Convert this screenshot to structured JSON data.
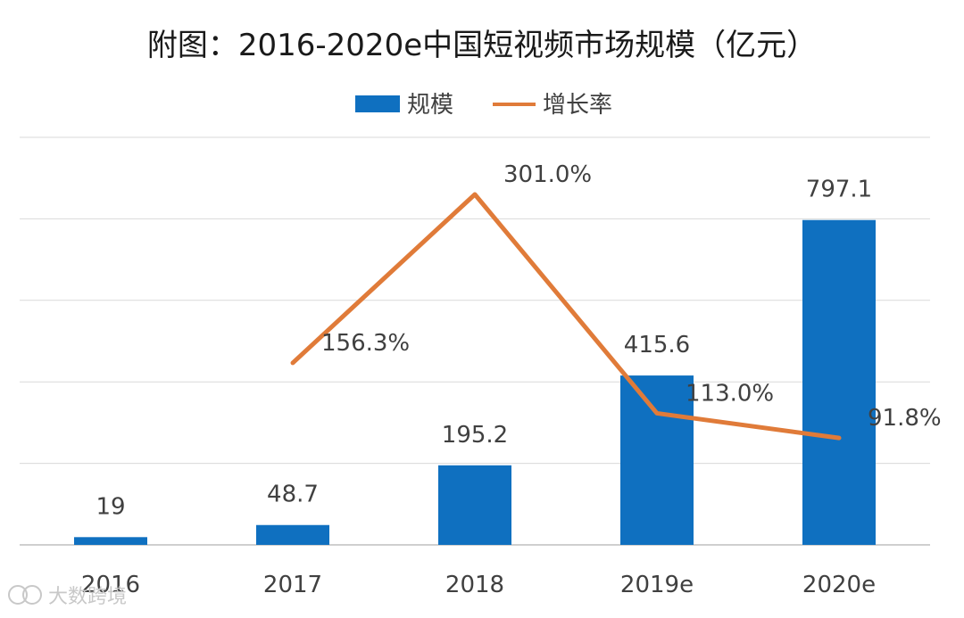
{
  "chart_data": {
    "type": "bar",
    "title": "附图：2016-2020e中国短视频市场规模（亿元）",
    "categories": [
      "2016",
      "2017",
      "2018",
      "2019e",
      "2020e"
    ],
    "series": [
      {
        "name": "规模",
        "kind": "bar",
        "values": [
          19,
          48.7,
          195.2,
          415.6,
          797.1
        ],
        "labels": [
          "19",
          "48.7",
          "195.2",
          "415.6",
          "797.1"
        ]
      },
      {
        "name": "增长率",
        "kind": "line",
        "values": [
          null,
          156.3,
          301.0,
          113.0,
          91.8
        ],
        "labels": [
          "",
          "156.3%",
          "301.0%",
          "113.0%",
          "91.8%"
        ]
      }
    ],
    "ylim": [
      0,
      1000
    ],
    "y2lim": [
      0,
      350
    ],
    "grid": true,
    "legend": "top-center",
    "xlabel": "",
    "ylabel": ""
  },
  "colors": {
    "bar": "#0f70c0",
    "line": "#e07b39",
    "grid": "#d9d9d9",
    "axis": "#bfbfbf",
    "text": "#404040",
    "title": "#1a1a1a"
  },
  "watermark": "大数跨境"
}
